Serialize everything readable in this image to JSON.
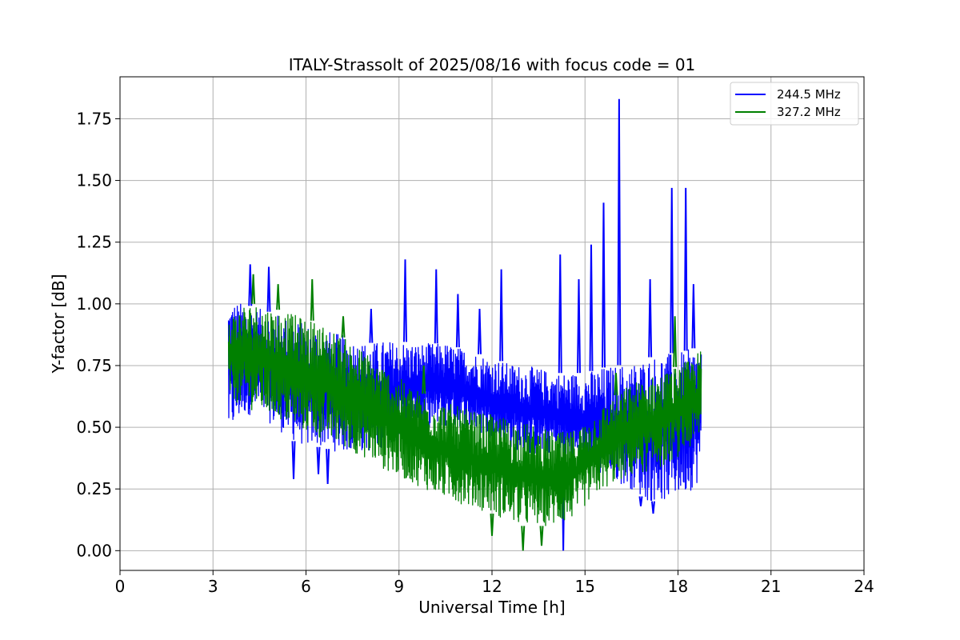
{
  "chart_data": {
    "type": "line",
    "title": "ITALY-Strassolt of 2025/08/16 with focus code = 01",
    "xlabel": "Universal Time [h]",
    "ylabel": "Y-factor [dB]",
    "xlim": [
      0,
      24
    ],
    "ylim": [
      -0.08,
      1.92
    ],
    "xticks": [
      0,
      3,
      6,
      9,
      12,
      15,
      18,
      21,
      24
    ],
    "yticks": [
      0.0,
      0.25,
      0.5,
      0.75,
      1.0,
      1.25,
      1.5,
      1.75
    ],
    "ytick_labels": [
      "0.00",
      "0.25",
      "0.50",
      "0.75",
      "1.00",
      "1.25",
      "1.50",
      "1.75"
    ],
    "grid": true,
    "legend_position": "top-right",
    "series": [
      {
        "name": "244.5 MHz",
        "color": "#0000ff",
        "x": [
          3.5,
          4,
          4.5,
          5,
          5.5,
          6,
          6.5,
          7,
          7.5,
          8,
          8.5,
          9,
          9.5,
          10,
          10.5,
          11,
          11.5,
          12,
          12.5,
          13,
          13.5,
          14,
          14.5,
          15,
          15.5,
          16,
          16.5,
          17,
          17.5,
          18,
          18.5,
          18.75
        ],
        "low": [
          0.46,
          0.55,
          0.55,
          0.5,
          0.45,
          0.42,
          0.42,
          0.4,
          0.4,
          0.4,
          0.42,
          0.45,
          0.48,
          0.5,
          0.5,
          0.5,
          0.48,
          0.45,
          0.42,
          0.4,
          0.38,
          0.4,
          0.35,
          0.35,
          0.3,
          0.28,
          0.25,
          0.2,
          0.2,
          0.22,
          0.25,
          0.3
        ],
        "high": [
          1.02,
          1.0,
          0.98,
          0.96,
          0.94,
          0.92,
          0.9,
          0.88,
          0.86,
          0.84,
          0.85,
          0.85,
          0.84,
          0.84,
          0.84,
          0.82,
          0.8,
          0.78,
          0.76,
          0.75,
          0.74,
          0.72,
          0.72,
          0.72,
          0.74,
          0.75,
          0.76,
          0.78,
          0.8,
          0.8,
          0.82,
          0.85
        ],
        "spikes": [
          {
            "x": 4.2,
            "y": 1.16
          },
          {
            "x": 4.8,
            "y": 1.15
          },
          {
            "x": 8.1,
            "y": 0.98
          },
          {
            "x": 9.2,
            "y": 1.18
          },
          {
            "x": 10.2,
            "y": 1.14
          },
          {
            "x": 10.9,
            "y": 1.04
          },
          {
            "x": 11.6,
            "y": 0.98
          },
          {
            "x": 12.3,
            "y": 1.14
          },
          {
            "x": 14.2,
            "y": 1.2
          },
          {
            "x": 14.8,
            "y": 1.1
          },
          {
            "x": 15.2,
            "y": 1.24
          },
          {
            "x": 15.6,
            "y": 1.41
          },
          {
            "x": 16.1,
            "y": 1.83
          },
          {
            "x": 17.1,
            "y": 1.1
          },
          {
            "x": 17.8,
            "y": 1.47
          },
          {
            "x": 18.25,
            "y": 1.47
          },
          {
            "x": 18.5,
            "y": 1.08
          }
        ],
        "dips": [
          {
            "x": 5.6,
            "y": 0.29
          },
          {
            "x": 6.4,
            "y": 0.31
          },
          {
            "x": 6.7,
            "y": 0.27
          },
          {
            "x": 14.3,
            "y": 0.0
          },
          {
            "x": 16.8,
            "y": 0.18
          },
          {
            "x": 17.2,
            "y": 0.15
          }
        ]
      },
      {
        "name": "327.2 MHz",
        "color": "#008000",
        "x": [
          3.5,
          4,
          4.5,
          5,
          5.5,
          6,
          6.5,
          7,
          7.5,
          8,
          8.5,
          9,
          9.5,
          10,
          10.5,
          11,
          11.5,
          12,
          12.5,
          13,
          13.5,
          14,
          14.5,
          15,
          15.5,
          16,
          16.5,
          17,
          17.5,
          18,
          18.5,
          18.75
        ],
        "low": [
          0.62,
          0.58,
          0.56,
          0.54,
          0.5,
          0.48,
          0.45,
          0.43,
          0.4,
          0.37,
          0.33,
          0.3,
          0.27,
          0.24,
          0.21,
          0.19,
          0.17,
          0.15,
          0.12,
          0.1,
          0.1,
          0.1,
          0.12,
          0.18,
          0.24,
          0.28,
          0.3,
          0.32,
          0.34,
          0.38,
          0.42,
          0.46
        ],
        "high": [
          0.95,
          1.0,
          1.0,
          0.98,
          0.96,
          0.94,
          0.92,
          0.88,
          0.84,
          0.8,
          0.75,
          0.7,
          0.66,
          0.62,
          0.6,
          0.58,
          0.56,
          0.55,
          0.54,
          0.52,
          0.5,
          0.48,
          0.48,
          0.52,
          0.58,
          0.63,
          0.68,
          0.7,
          0.72,
          0.75,
          0.78,
          0.82
        ],
        "spikes": [
          {
            "x": 4.3,
            "y": 1.12
          },
          {
            "x": 5.1,
            "y": 1.08
          },
          {
            "x": 6.2,
            "y": 1.1
          },
          {
            "x": 7.2,
            "y": 0.95
          },
          {
            "x": 9.8,
            "y": 0.75
          },
          {
            "x": 16.0,
            "y": 0.72
          },
          {
            "x": 17.9,
            "y": 0.95
          }
        ],
        "dips": [
          {
            "x": 12.0,
            "y": 0.06
          },
          {
            "x": 13.0,
            "y": 0.0
          },
          {
            "x": 13.6,
            "y": 0.02
          }
        ]
      }
    ]
  }
}
